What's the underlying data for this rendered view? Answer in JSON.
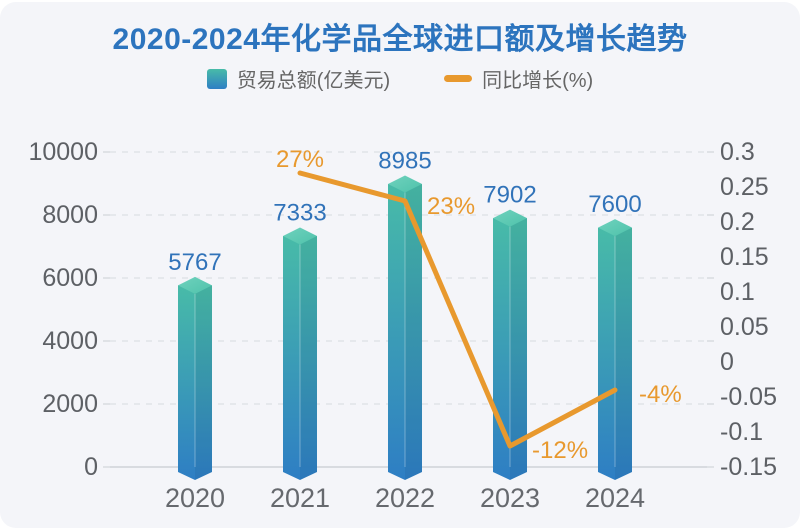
{
  "header": {
    "title": "2020-2024年化学品全球进口额及增长趋势"
  },
  "legend": {
    "items": [
      {
        "label": "贸易总额(亿美元)",
        "swatch": "bar-gradient-square"
      },
      {
        "label": "同比增长(%)",
        "swatch": "orange-line-dash"
      }
    ]
  },
  "chart_data": {
    "type": "combo-bar-line",
    "title": "2020-2024年化学品全球进口额及增长趋势",
    "categories": [
      "2020",
      "2021",
      "2022",
      "2023",
      "2024"
    ],
    "series": [
      {
        "name": "贸易总额(亿美元)",
        "type": "bar",
        "y_axis": "left",
        "values": [
          5767,
          7333,
          8985,
          7902,
          7600
        ],
        "value_labels": [
          "5767",
          "7333",
          "8985",
          "7902",
          "7600"
        ]
      },
      {
        "name": "同比增长(%)",
        "type": "line",
        "y_axis": "right",
        "values": [
          null,
          0.27,
          0.23,
          -0.12,
          -0.04
        ],
        "point_labels": [
          null,
          "27%",
          "23%",
          "-12%",
          "-4%"
        ]
      }
    ],
    "left_axis": {
      "min": 0,
      "max": 10000,
      "tick_labels": [
        "10000",
        "8000",
        "6000",
        "4000",
        "2000",
        "0"
      ]
    },
    "right_axis": {
      "min": -0.15,
      "max": 0.3,
      "tick_labels": [
        "0.3",
        "0.25",
        "0.2",
        "0.15",
        "0.1",
        "0.05",
        "0",
        "-0.05",
        "-0.1",
        "-0.15"
      ]
    },
    "grid": {
      "horizontal_dashed_lines": true
    },
    "legend_position": "top"
  },
  "colors": {
    "title": "#2c74be",
    "bar_gradient_top": "#48bba8",
    "bar_gradient_bottom": "#2e7ec4",
    "bar_cap_light": "#6fd2bd",
    "bar_cap_dark": "#4fc2ab",
    "line": "#e8992e",
    "value_label": "#3173b9",
    "growth_label": "#e8992e",
    "axis_text": "#5d6065",
    "x_axis_text": "#66696e",
    "legend_text": "#666666",
    "grid_line": "#e0e3e8",
    "axis_line": "#d8dbe0",
    "background": "#f4f5f9"
  }
}
